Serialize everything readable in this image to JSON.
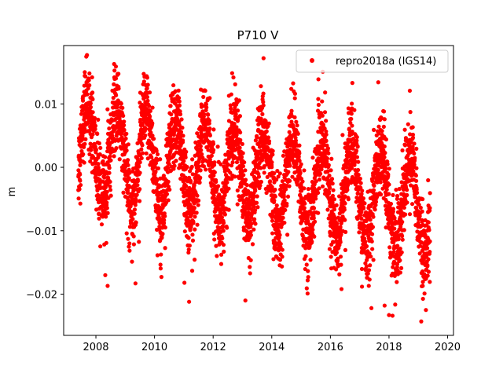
{
  "chart_data": {
    "type": "scatter",
    "title": "P710 V",
    "xlabel": "",
    "ylabel": "m",
    "xlim": [
      2006.9,
      2020.2
    ],
    "ylim": [
      -0.0265,
      0.0192
    ],
    "grid": false,
    "legend_placement": "top-right",
    "xticks": [
      2008,
      2010,
      2012,
      2014,
      2016,
      2018,
      2020
    ],
    "yticks": [
      -0.02,
      -0.01,
      0.0,
      0.01
    ],
    "ytick_labels": [
      "−0.02",
      "−0.01",
      "0.00",
      "0.01"
    ],
    "series": [
      {
        "name": "repro2018a (IGS14)",
        "color": "#ff0000",
        "marker": "circle",
        "x_range": [
          2007.4,
          2019.4
        ],
        "model": {
          "annual_amplitude": 0.0072,
          "annual_peak_fraction_of_year": 0.72,
          "trend_start": 0.0028,
          "trend_end": -0.0062,
          "noise_sd": 0.0032
        },
        "highlights": [
          {
            "x": 2013.72,
            "y": 0.0172
          },
          {
            "x": 2007.62,
            "y": 0.015
          },
          {
            "x": 2007.78,
            "y": 0.0148
          },
          {
            "x": 2013.63,
            "y": 0.0128
          },
          {
            "x": 2016.75,
            "y": 0.0133
          },
          {
            "x": 2010.82,
            "y": 0.0121
          },
          {
            "x": 2008.77,
            "y": 0.0127
          },
          {
            "x": 2012.62,
            "y": 0.0115
          },
          {
            "x": 2015.82,
            "y": 0.0118
          },
          {
            "x": 2011.02,
            "y": -0.0182
          },
          {
            "x": 2011.18,
            "y": -0.0212
          },
          {
            "x": 2013.1,
            "y": -0.021
          },
          {
            "x": 2009.35,
            "y": -0.0183
          },
          {
            "x": 2016.38,
            "y": -0.0192
          },
          {
            "x": 2017.4,
            "y": -0.0222
          },
          {
            "x": 2017.85,
            "y": -0.0218
          },
          {
            "x": 2018.0,
            "y": -0.0233
          },
          {
            "x": 2018.12,
            "y": -0.0234
          },
          {
            "x": 2019.1,
            "y": -0.0243
          },
          {
            "x": 2019.26,
            "y": -0.0225
          },
          {
            "x": 2008.32,
            "y": -0.017
          },
          {
            "x": 2008.4,
            "y": -0.0187
          }
        ]
      }
    ]
  }
}
